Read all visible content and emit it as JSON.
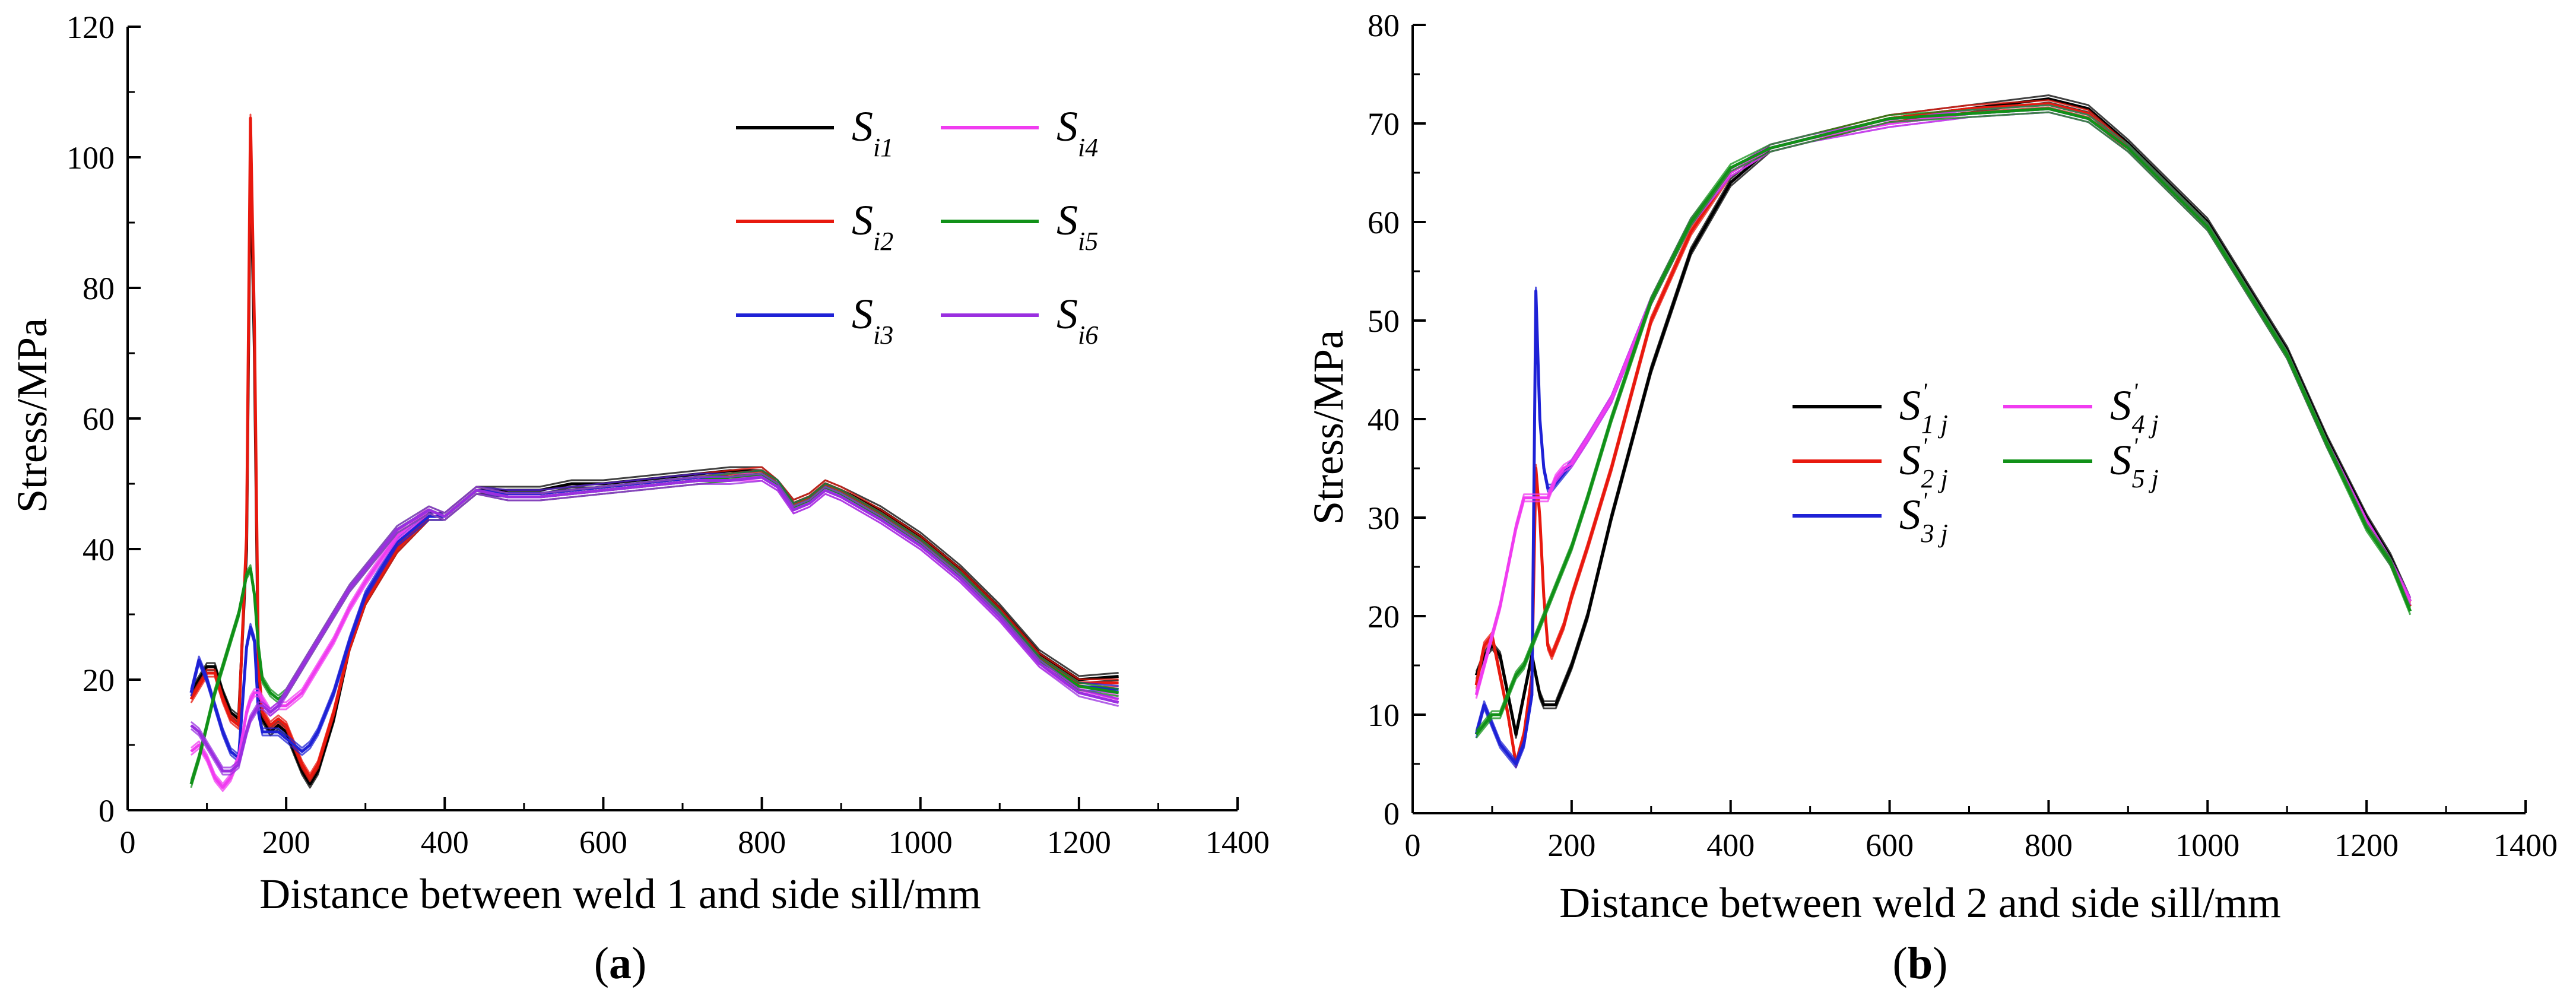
{
  "chart_data": [
    {
      "type": "line",
      "panel_label": "a",
      "xlabel": "Distance between weld 1 and side sill/mm",
      "ylabel": "Stress/MPa",
      "xlim": [
        0,
        1400
      ],
      "ylim": [
        0,
        120
      ],
      "xticks": [
        0,
        200,
        400,
        600,
        800,
        1000,
        1200,
        1400
      ],
      "yticks": [
        0,
        20,
        40,
        60,
        80,
        100,
        120
      ],
      "legend_position": "top-right",
      "series": [
        {
          "name": "S_i1",
          "base": "S",
          "sub": "i1",
          "sup": "",
          "color": "#000000",
          "x": [
            80,
            90,
            100,
            110,
            120,
            130,
            140,
            150,
            155,
            160,
            165,
            170,
            180,
            190,
            200,
            210,
            220,
            230,
            240,
            260,
            280,
            300,
            340,
            380,
            400,
            420,
            440,
            480,
            520,
            560,
            600,
            640,
            680,
            720,
            760,
            800,
            820,
            840,
            860,
            880,
            900,
            950,
            1000,
            1050,
            1100,
            1150,
            1200,
            1250
          ],
          "y": [
            18,
            20,
            22,
            22,
            18,
            15,
            14,
            40,
            101,
            70,
            20,
            14,
            12,
            13,
            12,
            9,
            6,
            4,
            6,
            14,
            25,
            32,
            40,
            45,
            45,
            47,
            49,
            49,
            49,
            50,
            50,
            50.5,
            51,
            51.5,
            52,
            52,
            50,
            47,
            48,
            50,
            49,
            46,
            42,
            37,
            31,
            24,
            20,
            20.5
          ]
        },
        {
          "name": "S_i2",
          "base": "S",
          "sub": "i2",
          "sup": "",
          "color": "#e8190f",
          "x": [
            80,
            90,
            100,
            110,
            120,
            130,
            140,
            150,
            155,
            160,
            165,
            170,
            180,
            190,
            200,
            210,
            220,
            230,
            240,
            260,
            280,
            300,
            340,
            380,
            400,
            420,
            440,
            480,
            520,
            560,
            600,
            640,
            680,
            720,
            760,
            800,
            820,
            840,
            860,
            880,
            900,
            950,
            1000,
            1050,
            1100,
            1150,
            1200,
            1250
          ],
          "y": [
            17,
            19,
            21,
            21,
            17,
            14,
            13,
            42,
            106,
            74,
            22,
            15,
            13,
            14,
            13,
            10,
            7,
            5,
            7,
            15,
            25,
            32,
            40,
            45,
            45,
            47,
            49,
            48.5,
            48.5,
            49,
            49.5,
            50,
            50.5,
            51,
            51.5,
            52,
            50,
            47,
            48,
            50,
            49,
            45.5,
            41.5,
            36.5,
            30.5,
            23.5,
            19.5,
            19.5
          ]
        },
        {
          "name": "S_i3",
          "base": "S",
          "sub": "i3",
          "sup": "",
          "color": "#1f22d6",
          "x": [
            80,
            90,
            100,
            110,
            120,
            130,
            140,
            150,
            155,
            160,
            165,
            170,
            180,
            190,
            200,
            210,
            220,
            230,
            240,
            260,
            280,
            300,
            340,
            380,
            400,
            420,
            440,
            480,
            520,
            560,
            600,
            640,
            680,
            720,
            760,
            800,
            820,
            840,
            860,
            880,
            900,
            950,
            1000,
            1050,
            1100,
            1150,
            1200,
            1250
          ],
          "y": [
            18,
            23,
            20,
            16,
            12,
            9,
            8,
            25,
            28,
            26,
            15,
            12,
            12,
            12,
            11,
            10,
            9,
            10,
            12,
            18,
            26,
            33,
            41,
            45,
            45,
            47,
            49,
            48.5,
            48.5,
            49,
            49.5,
            50,
            50.5,
            51,
            51,
            51.5,
            50,
            46.5,
            47.5,
            49.5,
            48.5,
            45,
            41,
            36,
            30,
            23,
            19,
            18.5
          ]
        },
        {
          "name": "S_i4",
          "base": "S",
          "sub": "i4",
          "sup": "",
          "color": "#f03cf0",
          "x": [
            80,
            90,
            100,
            110,
            120,
            130,
            140,
            150,
            155,
            160,
            165,
            170,
            180,
            190,
            200,
            210,
            220,
            230,
            240,
            260,
            280,
            300,
            340,
            380,
            400,
            420,
            440,
            480,
            520,
            560,
            600,
            640,
            680,
            720,
            760,
            800,
            820,
            840,
            860,
            880,
            900,
            950,
            1000,
            1050,
            1100,
            1150,
            1200,
            1250
          ],
          "y": [
            9,
            10,
            8,
            5,
            3.5,
            5,
            8,
            15,
            17,
            18,
            18,
            17,
            15,
            16,
            16,
            17,
            18,
            20,
            22,
            26,
            31,
            35,
            42,
            46,
            45,
            47,
            49,
            48,
            48,
            48.5,
            49,
            49.5,
            50,
            50.5,
            51,
            51,
            49.5,
            46,
            47,
            49,
            48,
            44.5,
            40.5,
            35.5,
            29.5,
            22.5,
            18.5,
            17
          ]
        },
        {
          "name": "S_i5",
          "base": "S",
          "sub": "i5",
          "sup": "",
          "color": "#119118",
          "x": [
            80,
            90,
            100,
            110,
            120,
            130,
            140,
            150,
            155,
            160,
            165,
            170,
            180,
            190,
            200,
            210,
            220,
            230,
            240,
            260,
            280,
            300,
            340,
            380,
            400,
            420,
            440,
            480,
            520,
            560,
            600,
            640,
            680,
            720,
            760,
            800,
            820,
            840,
            860,
            880,
            900,
            950,
            1000,
            1050,
            1100,
            1150,
            1200,
            1250
          ],
          "y": [
            4,
            8,
            13,
            18,
            22,
            26,
            30,
            36,
            37,
            33,
            25,
            20,
            18,
            17,
            18,
            20,
            22,
            24,
            26,
            30,
            34,
            37,
            43,
            46,
            45,
            47,
            49,
            48,
            48,
            48.5,
            49,
            49.5,
            50,
            50.5,
            51,
            51.5,
            50,
            46.5,
            47.5,
            49.5,
            48.5,
            45,
            41,
            36,
            30,
            23,
            19,
            18
          ]
        },
        {
          "name": "S_i6",
          "base": "S",
          "sub": "i6",
          "sup": "",
          "color": "#9a2fe0",
          "x": [
            80,
            90,
            100,
            110,
            120,
            130,
            140,
            150,
            155,
            160,
            165,
            170,
            180,
            190,
            200,
            210,
            220,
            230,
            240,
            260,
            280,
            300,
            340,
            380,
            400,
            420,
            440,
            480,
            520,
            560,
            600,
            640,
            680,
            720,
            760,
            800,
            820,
            840,
            860,
            880,
            900,
            950,
            1000,
            1050,
            1100,
            1150,
            1200,
            1250
          ],
          "y": [
            13,
            12,
            10,
            8,
            6,
            6,
            7,
            12,
            14,
            15,
            16,
            16,
            15,
            16,
            18,
            20,
            22,
            24,
            26,
            30,
            34,
            37,
            43,
            46,
            45,
            47,
            49,
            48,
            48,
            48.5,
            49,
            49.5,
            50,
            50.5,
            50.5,
            51,
            49.5,
            46,
            47,
            49,
            48,
            44.5,
            40.5,
            35.5,
            29.5,
            22.5,
            18,
            16.5
          ]
        }
      ]
    },
    {
      "type": "line",
      "panel_label": "b",
      "xlabel": "Distance between weld 2 and side sill/mm",
      "ylabel": "Stress/MPa",
      "xlim": [
        0,
        1400
      ],
      "ylim": [
        0,
        80
      ],
      "xticks": [
        0,
        200,
        400,
        600,
        800,
        1000,
        1200,
        1400
      ],
      "yticks": [
        0,
        10,
        20,
        30,
        40,
        50,
        60,
        70,
        80
      ],
      "legend_position": "center",
      "series": [
        {
          "name": "S'_1j",
          "base": "S",
          "sub": "1 j",
          "sup": "'",
          "color": "#000000",
          "x": [
            80,
            90,
            100,
            110,
            120,
            130,
            140,
            150,
            155,
            160,
            165,
            170,
            175,
            180,
            190,
            200,
            220,
            250,
            300,
            350,
            400,
            450,
            500,
            600,
            700,
            800,
            850,
            900,
            1000,
            1100,
            1150,
            1200,
            1230,
            1255
          ],
          "y": [
            14,
            16,
            17,
            16,
            12,
            8,
            12,
            16,
            14,
            12,
            11,
            11,
            11,
            11,
            13,
            15,
            20,
            30,
            45,
            57,
            64,
            67.5,
            68.5,
            70.5,
            71.5,
            72.5,
            71.5,
            68,
            60,
            47,
            38,
            30,
            26,
            21.5
          ]
        },
        {
          "name": "S'_2j",
          "base": "S",
          "sub": "2 j",
          "sup": "'",
          "color": "#e8190f",
          "x": [
            80,
            90,
            100,
            110,
            120,
            130,
            140,
            150,
            155,
            160,
            165,
            170,
            175,
            180,
            190,
            200,
            220,
            250,
            300,
            350,
            400,
            450,
            500,
            600,
            700,
            800,
            850,
            900,
            1000,
            1100,
            1150,
            1200,
            1230,
            1255
          ],
          "y": [
            13,
            17,
            18,
            14,
            10,
            5,
            8,
            14,
            35,
            30,
            22,
            17,
            16,
            17,
            19,
            22,
            27,
            35,
            50,
            59,
            65,
            67.5,
            68.5,
            70.5,
            71.5,
            72,
            71,
            67.5,
            59.5,
            46.5,
            37.5,
            29.5,
            25.5,
            21
          ]
        },
        {
          "name": "S'_3j",
          "base": "S",
          "sub": "3 j",
          "sup": "'",
          "color": "#1f22d6",
          "x": [
            80,
            90,
            100,
            110,
            120,
            130,
            140,
            150,
            155,
            160,
            165,
            170,
            175,
            180,
            190,
            200,
            220,
            250,
            300,
            350,
            400,
            450,
            500,
            600,
            700,
            800,
            850,
            900,
            1000,
            1100,
            1150,
            1200,
            1230,
            1255
          ],
          "y": [
            8,
            11,
            9,
            7,
            6,
            5,
            7,
            12,
            53,
            40,
            35,
            33,
            33,
            33.5,
            34.5,
            35.5,
            38,
            42,
            52,
            60,
            65,
            67.5,
            68.5,
            70,
            71,
            71.5,
            70.5,
            67.5,
            59.5,
            46.5,
            37.5,
            29.5,
            25.5,
            21.5
          ]
        },
        {
          "name": "S'_4j",
          "base": "S",
          "sub": "4 j",
          "sup": "'",
          "color": "#f03cf0",
          "x": [
            80,
            90,
            100,
            110,
            120,
            130,
            140,
            150,
            155,
            160,
            165,
            170,
            175,
            180,
            190,
            200,
            220,
            250,
            300,
            350,
            400,
            450,
            500,
            600,
            700,
            800,
            850,
            900,
            1000,
            1100,
            1150,
            1200,
            1230,
            1255
          ],
          "y": [
            12,
            15,
            18,
            21,
            25,
            29,
            32,
            32,
            32,
            32,
            32,
            32,
            33,
            34,
            35,
            35.5,
            38,
            42,
            52,
            60,
            65,
            67.5,
            68.5,
            70,
            71,
            71.5,
            70.5,
            67.5,
            59.5,
            46.5,
            37.5,
            29.5,
            25.5,
            21.5
          ]
        },
        {
          "name": "S'_5j",
          "base": "S",
          "sub": "5 j",
          "sup": "'",
          "color": "#119118",
          "x": [
            80,
            90,
            100,
            110,
            120,
            130,
            140,
            150,
            155,
            160,
            165,
            170,
            175,
            180,
            190,
            200,
            220,
            250,
            300,
            350,
            400,
            450,
            500,
            600,
            700,
            800,
            850,
            900,
            1000,
            1100,
            1150,
            1200,
            1230,
            1255
          ],
          "y": [
            8,
            9,
            10,
            10,
            12,
            14,
            15,
            17,
            18,
            19,
            20,
            21,
            22,
            23,
            25,
            27,
            32,
            40,
            52,
            60,
            65.5,
            67.5,
            68.5,
            70.5,
            71,
            71.5,
            70.5,
            67.5,
            59.5,
            46.5,
            37.5,
            29,
            25.5,
            20.5
          ]
        }
      ]
    }
  ]
}
